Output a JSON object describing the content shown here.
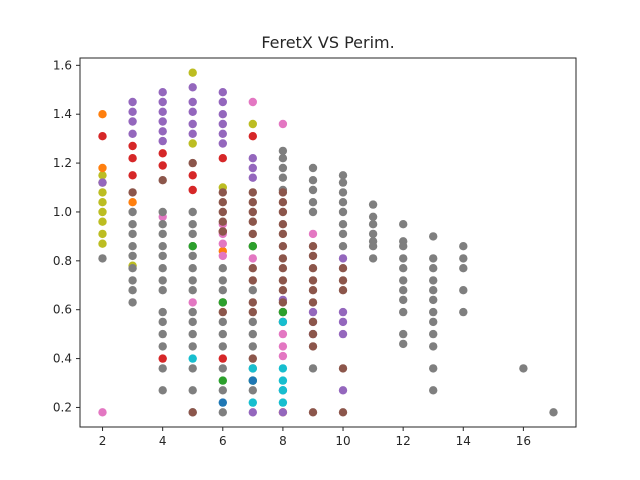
{
  "chart_data": {
    "type": "scatter",
    "title": "FeretX VS Perim.",
    "xlabel": "",
    "ylabel": "",
    "xlim": [
      1.25,
      17.75
    ],
    "ylim": [
      0.12,
      1.63
    ],
    "xticks": [
      2,
      4,
      6,
      8,
      10,
      12,
      14,
      16
    ],
    "yticks": [
      0.2,
      0.4,
      0.6,
      0.8,
      1.0,
      1.2,
      1.4,
      1.6
    ],
    "xtick_labels": [
      "2",
      "4",
      "6",
      "8",
      "10",
      "12",
      "14",
      "16"
    ],
    "ytick_labels": [
      "0.2",
      "0.4",
      "0.6",
      "0.8",
      "1.0",
      "1.2",
      "1.4",
      "1.6"
    ],
    "grid": false,
    "series": [
      {
        "color": "#bcbd22",
        "points": [
          [
            2,
            0.87
          ],
          [
            2,
            0.91
          ],
          [
            2,
            0.96
          ],
          [
            2,
            1.0
          ],
          [
            2,
            1.04
          ],
          [
            2,
            1.08
          ],
          [
            2,
            1.12
          ],
          [
            2,
            1.15
          ],
          [
            5,
            1.57
          ],
          [
            7,
            1.36
          ],
          [
            5,
            1.28
          ],
          [
            6,
            1.1
          ],
          [
            3,
            0.78
          ]
        ]
      },
      {
        "color": "#ff7f0e",
        "points": [
          [
            2,
            1.4
          ],
          [
            2,
            1.18
          ],
          [
            8,
            0.18
          ],
          [
            3,
            1.04
          ],
          [
            6,
            0.84
          ]
        ]
      },
      {
        "color": "#d62728",
        "points": [
          [
            2,
            1.31
          ],
          [
            3,
            1.15
          ],
          [
            3,
            1.22
          ],
          [
            3,
            1.27
          ],
          [
            4,
            1.24
          ],
          [
            4,
            1.19
          ],
          [
            4,
            0.4
          ],
          [
            5,
            1.15
          ],
          [
            5,
            1.09
          ],
          [
            6,
            0.4
          ],
          [
            6,
            1.22
          ],
          [
            7,
            1.31
          ],
          [
            6,
            0.92
          ]
        ]
      },
      {
        "color": "#9467bd",
        "points": [
          [
            2,
            1.12
          ],
          [
            3,
            1.45
          ],
          [
            3,
            1.41
          ],
          [
            3,
            1.37
          ],
          [
            3,
            1.32
          ],
          [
            4,
            1.49
          ],
          [
            4,
            1.45
          ],
          [
            4,
            1.41
          ],
          [
            4,
            1.37
          ],
          [
            4,
            1.33
          ],
          [
            4,
            1.29
          ],
          [
            5,
            1.51
          ],
          [
            5,
            1.45
          ],
          [
            5,
            1.41
          ],
          [
            5,
            1.36
          ],
          [
            5,
            1.32
          ],
          [
            6,
            1.49
          ],
          [
            6,
            1.45
          ],
          [
            6,
            1.4
          ],
          [
            6,
            1.36
          ],
          [
            6,
            1.32
          ],
          [
            6,
            1.28
          ],
          [
            7,
            1.22
          ],
          [
            7,
            1.18
          ],
          [
            7,
            1.14
          ],
          [
            7,
            0.18
          ],
          [
            8,
            0.18
          ],
          [
            8,
            0.64
          ],
          [
            9,
            0.59
          ],
          [
            9,
            0.55
          ],
          [
            9,
            0.5
          ],
          [
            10,
            0.81
          ],
          [
            10,
            0.59
          ],
          [
            10,
            0.55
          ],
          [
            10,
            0.5
          ],
          [
            10,
            0.27
          ]
        ]
      },
      {
        "color": "#e377c2",
        "points": [
          [
            2,
            0.18
          ],
          [
            6,
            0.95
          ],
          [
            6,
            0.91
          ],
          [
            6,
            0.87
          ],
          [
            6,
            0.82
          ],
          [
            7,
            1.45
          ],
          [
            7,
            0.81
          ],
          [
            8,
            1.36
          ],
          [
            8,
            0.5
          ],
          [
            8,
            0.45
          ],
          [
            8,
            0.41
          ],
          [
            5,
            0.63
          ],
          [
            4,
            0.98
          ],
          [
            9,
            0.91
          ]
        ]
      },
      {
        "color": "#7f7f7f",
        "points": [
          [
            2,
            0.81
          ],
          [
            3,
            0.63
          ],
          [
            3,
            0.68
          ],
          [
            3,
            0.72
          ],
          [
            3,
            0.77
          ],
          [
            3,
            0.82
          ],
          [
            3,
            0.86
          ],
          [
            3,
            0.91
          ],
          [
            3,
            0.95
          ],
          [
            3,
            1.0
          ],
          [
            4,
            0.27
          ],
          [
            4,
            0.36
          ],
          [
            4,
            0.45
          ],
          [
            4,
            0.5
          ],
          [
            4,
            0.55
          ],
          [
            4,
            0.59
          ],
          [
            4,
            0.68
          ],
          [
            4,
            0.72
          ],
          [
            4,
            0.77
          ],
          [
            4,
            0.82
          ],
          [
            4,
            0.86
          ],
          [
            4,
            0.91
          ],
          [
            4,
            0.95
          ],
          [
            4,
            1.0
          ],
          [
            5,
            0.18
          ],
          [
            5,
            0.27
          ],
          [
            5,
            0.36
          ],
          [
            5,
            0.45
          ],
          [
            5,
            0.5
          ],
          [
            5,
            0.55
          ],
          [
            5,
            0.59
          ],
          [
            5,
            0.68
          ],
          [
            5,
            0.72
          ],
          [
            5,
            0.77
          ],
          [
            5,
            0.82
          ],
          [
            5,
            0.86
          ],
          [
            5,
            0.91
          ],
          [
            5,
            0.95
          ],
          [
            5,
            1.0
          ],
          [
            6,
            0.18
          ],
          [
            6,
            0.27
          ],
          [
            6,
            0.36
          ],
          [
            6,
            0.45
          ],
          [
            6,
            0.5
          ],
          [
            6,
            0.55
          ],
          [
            6,
            0.68
          ],
          [
            6,
            0.72
          ],
          [
            6,
            0.77
          ],
          [
            7,
            0.27
          ],
          [
            7,
            0.36
          ],
          [
            7,
            0.45
          ],
          [
            7,
            0.5
          ],
          [
            7,
            0.55
          ],
          [
            7,
            0.68
          ],
          [
            8,
            1.25
          ],
          [
            8,
            1.22
          ],
          [
            8,
            1.18
          ],
          [
            8,
            1.14
          ],
          [
            8,
            1.09
          ],
          [
            9,
            1.18
          ],
          [
            9,
            1.13
          ],
          [
            9,
            1.09
          ],
          [
            9,
            1.04
          ],
          [
            9,
            1.0
          ],
          [
            9,
            0.36
          ],
          [
            10,
            1.15
          ],
          [
            10,
            1.12
          ],
          [
            10,
            1.08
          ],
          [
            10,
            1.04
          ],
          [
            10,
            1.0
          ],
          [
            10,
            0.95
          ],
          [
            10,
            0.91
          ],
          [
            10,
            0.86
          ],
          [
            11,
            1.03
          ],
          [
            11,
            0.98
          ],
          [
            11,
            0.95
          ],
          [
            11,
            0.91
          ],
          [
            11,
            0.88
          ],
          [
            11,
            0.86
          ],
          [
            11,
            0.81
          ],
          [
            12,
            0.95
          ],
          [
            12,
            0.88
          ],
          [
            12,
            0.86
          ],
          [
            12,
            0.81
          ],
          [
            12,
            0.77
          ],
          [
            12,
            0.72
          ],
          [
            12,
            0.68
          ],
          [
            12,
            0.64
          ],
          [
            12,
            0.59
          ],
          [
            12,
            0.5
          ],
          [
            12,
            0.46
          ],
          [
            13,
            0.9
          ],
          [
            13,
            0.81
          ],
          [
            13,
            0.77
          ],
          [
            13,
            0.72
          ],
          [
            13,
            0.68
          ],
          [
            13,
            0.64
          ],
          [
            13,
            0.59
          ],
          [
            13,
            0.55
          ],
          [
            13,
            0.5
          ],
          [
            13,
            0.45
          ],
          [
            13,
            0.36
          ],
          [
            13,
            0.27
          ],
          [
            14,
            0.86
          ],
          [
            14,
            0.81
          ],
          [
            14,
            0.77
          ],
          [
            14,
            0.68
          ],
          [
            14,
            0.59
          ],
          [
            16,
            0.36
          ],
          [
            17,
            0.18
          ]
        ]
      },
      {
        "color": "#8c564b",
        "points": [
          [
            6,
            1.08
          ],
          [
            6,
            1.04
          ],
          [
            6,
            1.0
          ],
          [
            6,
            0.96
          ],
          [
            6,
            0.92
          ],
          [
            6,
            0.59
          ],
          [
            6,
            0.63
          ],
          [
            7,
            1.08
          ],
          [
            7,
            1.04
          ],
          [
            7,
            1.0
          ],
          [
            7,
            0.96
          ],
          [
            7,
            0.91
          ],
          [
            7,
            0.86
          ],
          [
            7,
            0.77
          ],
          [
            7,
            0.72
          ],
          [
            7,
            0.63
          ],
          [
            7,
            0.59
          ],
          [
            7,
            0.4
          ],
          [
            8,
            1.08
          ],
          [
            8,
            1.04
          ],
          [
            8,
            1.0
          ],
          [
            8,
            0.95
          ],
          [
            8,
            0.91
          ],
          [
            8,
            0.86
          ],
          [
            8,
            0.81
          ],
          [
            8,
            0.77
          ],
          [
            8,
            0.72
          ],
          [
            8,
            0.68
          ],
          [
            8,
            0.63
          ],
          [
            8,
            0.59
          ],
          [
            8,
            0.55
          ],
          [
            9,
            0.86
          ],
          [
            9,
            0.82
          ],
          [
            9,
            0.77
          ],
          [
            9,
            0.72
          ],
          [
            9,
            0.68
          ],
          [
            9,
            0.63
          ],
          [
            9,
            0.55
          ],
          [
            9,
            0.5
          ],
          [
            9,
            0.45
          ],
          [
            9,
            0.18
          ],
          [
            10,
            0.77
          ],
          [
            10,
            0.72
          ],
          [
            10,
            0.68
          ],
          [
            10,
            0.36
          ],
          [
            10,
            0.18
          ],
          [
            5,
            1.2
          ],
          [
            5,
            0.18
          ],
          [
            4,
            1.13
          ],
          [
            3,
            1.08
          ]
        ]
      },
      {
        "color": "#2ca02c",
        "points": [
          [
            6,
            0.63
          ],
          [
            6,
            0.31
          ],
          [
            7,
            0.86
          ],
          [
            7,
            0.31
          ],
          [
            8,
            0.59
          ],
          [
            5,
            0.86
          ]
        ]
      },
      {
        "color": "#1f77b4",
        "points": [
          [
            7,
            0.31
          ],
          [
            8,
            0.27
          ],
          [
            6,
            0.22
          ]
        ]
      },
      {
        "color": "#17becf",
        "points": [
          [
            5,
            0.4
          ],
          [
            7,
            0.36
          ],
          [
            8,
            0.55
          ],
          [
            8,
            0.36
          ],
          [
            8,
            0.31
          ],
          [
            8,
            0.27
          ],
          [
            8,
            0.22
          ],
          [
            7,
            0.22
          ]
        ]
      }
    ]
  }
}
